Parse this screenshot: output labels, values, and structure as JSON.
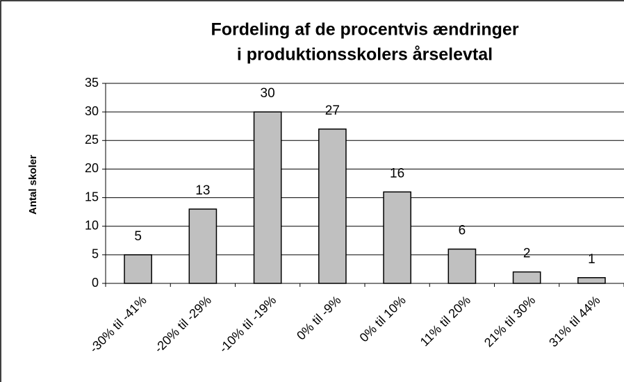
{
  "chart_data": {
    "type": "bar",
    "title": [
      "Fordeling af de procentvis ændringer",
      "i produktionsskolers årselevtal"
    ],
    "y_label": "Antal skoler",
    "categories": [
      "-30% til -41%",
      "-20% til -29%",
      "-10% til -19%",
      "0% til -9%",
      "0% til 10%",
      "11% til 20%",
      "21% til 30%",
      "31% til 44%"
    ],
    "values": [
      5,
      13,
      30,
      27,
      16,
      6,
      2,
      1
    ],
    "color": "#c0c0c0",
    "ylim": [
      0,
      35
    ],
    "yticks": [
      0,
      5,
      10,
      15,
      20,
      25,
      30,
      35
    ],
    "grid": true
  }
}
